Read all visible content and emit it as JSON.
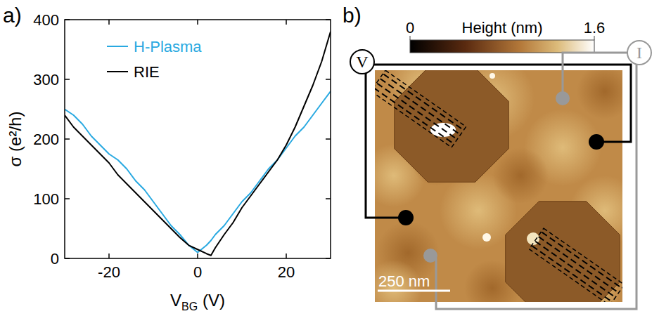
{
  "chart_data": [
    {
      "type": "line",
      "panel_label": "a)",
      "xlabel": "VBG (V)",
      "ylabel": "σ (e²/h)",
      "x": [
        -30,
        -28,
        -26,
        -24,
        -22,
        -20,
        -18,
        -16,
        -14,
        -12,
        -10,
        -8,
        -6,
        -4,
        -2,
        0,
        2,
        3,
        4,
        6,
        8,
        10,
        12,
        14,
        16,
        18,
        20,
        22,
        24,
        26,
        28,
        30
      ],
      "series": [
        {
          "name": "H-Plasma",
          "color": "#29a9e1",
          "values": [
            250,
            240,
            225,
            205,
            190,
            175,
            165,
            150,
            130,
            115,
            95,
            75,
            55,
            40,
            22,
            10,
            22,
            30,
            40,
            55,
            75,
            95,
            110,
            130,
            150,
            165,
            185,
            205,
            220,
            240,
            260,
            280
          ]
        },
        {
          "name": "RIE",
          "color": "#000000",
          "values": [
            240,
            220,
            205,
            190,
            175,
            160,
            140,
            125,
            110,
            95,
            80,
            65,
            50,
            35,
            22,
            15,
            8,
            5,
            18,
            40,
            60,
            85,
            105,
            125,
            145,
            165,
            190,
            220,
            255,
            290,
            330,
            380
          ]
        }
      ],
      "xlim": [
        -30,
        30
      ],
      "xticks": [
        -20,
        0,
        20
      ],
      "ylim": [
        0,
        400
      ],
      "yticks": [
        0,
        100,
        200,
        300,
        400
      ],
      "legend": "upper left",
      "grid": false
    },
    {
      "type": "image",
      "panel_label": "b)",
      "colorbar": {
        "label": "Height (nm)",
        "lim": [
          0,
          1.6
        ],
        "ticks": [
          0,
          1.6
        ]
      },
      "annotations": [
        "V",
        "I",
        "250 nm"
      ]
    }
  ]
}
